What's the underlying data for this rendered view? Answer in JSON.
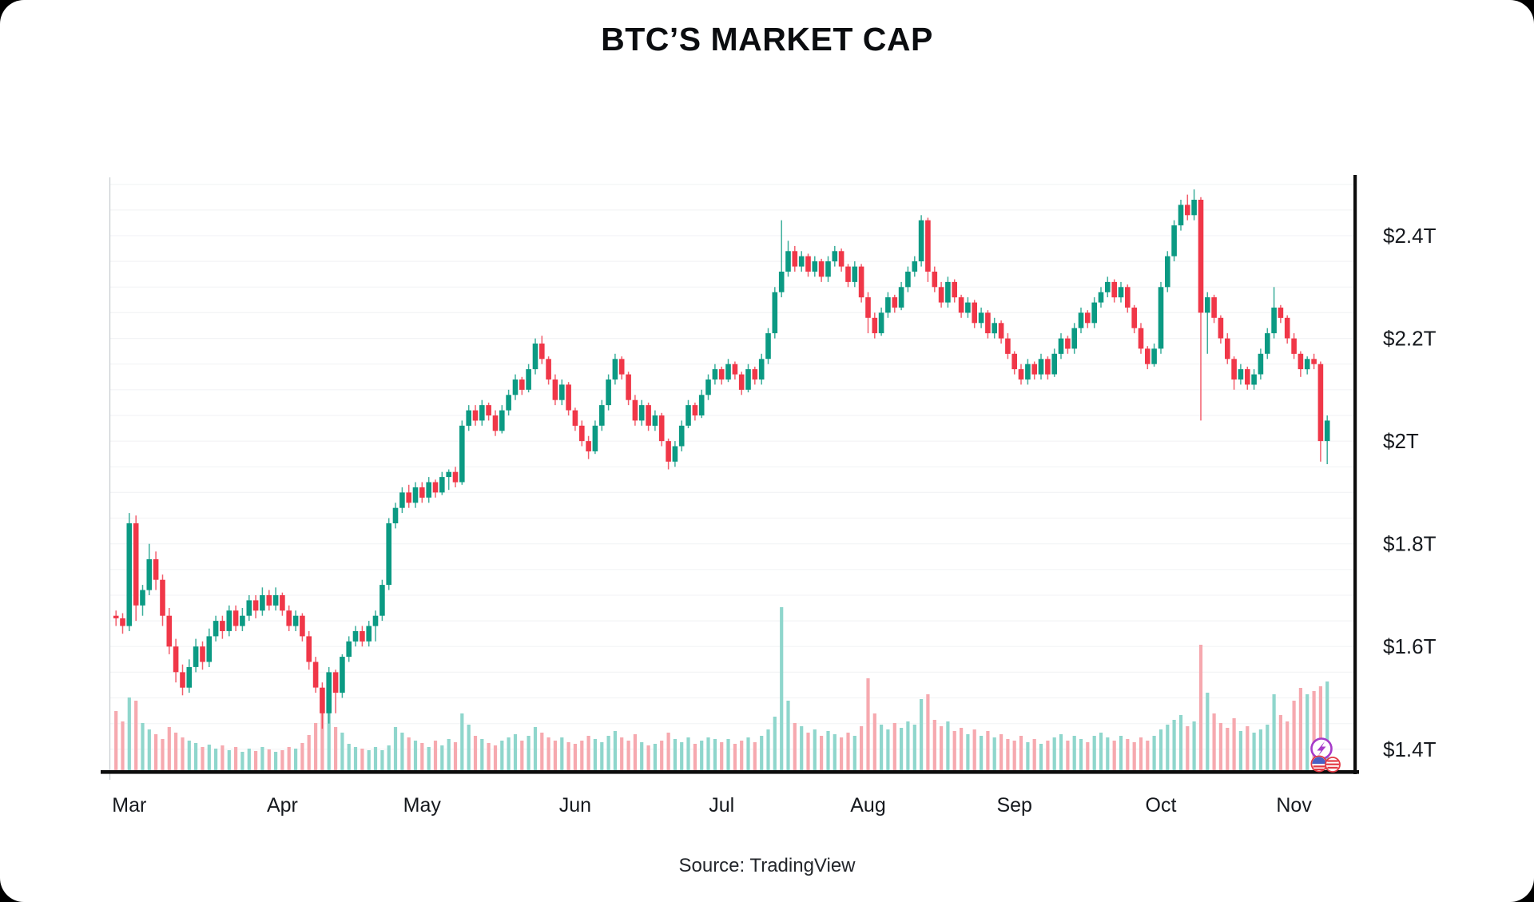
{
  "page": {
    "title": "BTC’S MARKET CAP",
    "source": "Source: TradingView",
    "colors": {
      "page_background": "#000000",
      "card_background": "#ffffff",
      "title_text": "#0b0d10",
      "label_text": "#16191e"
    }
  },
  "chart_data": {
    "type": "candlestick",
    "title": "BTC’S MARKET CAP",
    "xlabel": "",
    "ylabel": "",
    "unit": "USD trillions",
    "ylim": [
      1.36,
      2.52
    ],
    "grid": "faint-horizontal",
    "legend": "none",
    "x_axis": {
      "ticks": [
        {
          "label": "Mar",
          "index": 2
        },
        {
          "label": "Apr",
          "index": 25
        },
        {
          "label": "May",
          "index": 46
        },
        {
          "label": "Jun",
          "index": 69
        },
        {
          "label": "Jul",
          "index": 91
        },
        {
          "label": "Aug",
          "index": 113
        },
        {
          "label": "Sep",
          "index": 135
        },
        {
          "label": "Oct",
          "index": 157
        },
        {
          "label": "Nov",
          "index": 177
        }
      ]
    },
    "y_axis": {
      "ticks": [
        {
          "value": 2.4,
          "label": "$2.4T"
        },
        {
          "value": 2.2,
          "label": "$2.2T"
        },
        {
          "value": 2.0,
          "label": "$2T"
        },
        {
          "value": 1.8,
          "label": "$1.8T"
        },
        {
          "value": 1.6,
          "label": "$1.6T"
        },
        {
          "value": 1.4,
          "label": "$1.4T"
        }
      ]
    },
    "colors": {
      "up": "#0b9a83",
      "down": "#f03748",
      "volume_up": "#8fd6cc",
      "volume_down": "#f6a9af",
      "axis": "#0d0d0d",
      "grid": "#f3f4f6",
      "left_edge": "#c9cdd2",
      "label": "#16191e",
      "badge_purple": "#a63bc9",
      "badge_red": "#e23a44",
      "badge_blue": "#4a5fc4"
    },
    "candles": [
      [
        1.66,
        1.67,
        1.64,
        1.655
      ],
      [
        1.655,
        1.665,
        1.625,
        1.64
      ],
      [
        1.64,
        1.86,
        1.63,
        1.84
      ],
      [
        1.84,
        1.855,
        1.65,
        1.68
      ],
      [
        1.68,
        1.72,
        1.66,
        1.71
      ],
      [
        1.71,
        1.8,
        1.7,
        1.77
      ],
      [
        1.77,
        1.785,
        1.71,
        1.73
      ],
      [
        1.73,
        1.74,
        1.64,
        1.66
      ],
      [
        1.66,
        1.675,
        1.585,
        1.6
      ],
      [
        1.6,
        1.615,
        1.53,
        1.55
      ],
      [
        1.55,
        1.565,
        1.505,
        1.52
      ],
      [
        1.52,
        1.575,
        1.51,
        1.56
      ],
      [
        1.56,
        1.615,
        1.55,
        1.6
      ],
      [
        1.6,
        1.61,
        1.555,
        1.57
      ],
      [
        1.57,
        1.635,
        1.56,
        1.62
      ],
      [
        1.62,
        1.66,
        1.61,
        1.65
      ],
      [
        1.65,
        1.66,
        1.615,
        1.63
      ],
      [
        1.63,
        1.68,
        1.62,
        1.67
      ],
      [
        1.67,
        1.68,
        1.63,
        1.64
      ],
      [
        1.64,
        1.675,
        1.63,
        1.66
      ],
      [
        1.66,
        1.7,
        1.65,
        1.69
      ],
      [
        1.69,
        1.7,
        1.655,
        1.67
      ],
      [
        1.67,
        1.715,
        1.66,
        1.7
      ],
      [
        1.7,
        1.71,
        1.67,
        1.68
      ],
      [
        1.68,
        1.715,
        1.67,
        1.7
      ],
      [
        1.7,
        1.705,
        1.66,
        1.67
      ],
      [
        1.67,
        1.68,
        1.63,
        1.64
      ],
      [
        1.64,
        1.67,
        1.63,
        1.66
      ],
      [
        1.66,
        1.665,
        1.61,
        1.62
      ],
      [
        1.62,
        1.63,
        1.555,
        1.57
      ],
      [
        1.57,
        1.58,
        1.51,
        1.52
      ],
      [
        1.52,
        1.53,
        1.44,
        1.47
      ],
      [
        1.47,
        1.56,
        1.45,
        1.55
      ],
      [
        1.55,
        1.555,
        1.47,
        1.51
      ],
      [
        1.51,
        1.585,
        1.5,
        1.58
      ],
      [
        1.58,
        1.62,
        1.57,
        1.61
      ],
      [
        1.61,
        1.64,
        1.6,
        1.63
      ],
      [
        1.63,
        1.64,
        1.6,
        1.61
      ],
      [
        1.61,
        1.65,
        1.6,
        1.64
      ],
      [
        1.64,
        1.67,
        1.61,
        1.66
      ],
      [
        1.66,
        1.73,
        1.65,
        1.72
      ],
      [
        1.72,
        1.85,
        1.71,
        1.84
      ],
      [
        1.84,
        1.88,
        1.83,
        1.87
      ],
      [
        1.87,
        1.91,
        1.86,
        1.9
      ],
      [
        1.9,
        1.915,
        1.87,
        1.88
      ],
      [
        1.88,
        1.92,
        1.87,
        1.91
      ],
      [
        1.91,
        1.92,
        1.88,
        1.89
      ],
      [
        1.89,
        1.93,
        1.88,
        1.92
      ],
      [
        1.92,
        1.925,
        1.89,
        1.9
      ],
      [
        1.9,
        1.94,
        1.895,
        1.93
      ],
      [
        1.93,
        1.945,
        1.905,
        1.94
      ],
      [
        1.94,
        1.95,
        1.91,
        1.92
      ],
      [
        1.92,
        2.04,
        1.915,
        2.03
      ],
      [
        2.03,
        2.07,
        2.02,
        2.06
      ],
      [
        2.06,
        2.07,
        2.03,
        2.04
      ],
      [
        2.04,
        2.08,
        2.03,
        2.07
      ],
      [
        2.07,
        2.075,
        2.04,
        2.05
      ],
      [
        2.05,
        2.06,
        2.01,
        2.02
      ],
      [
        2.02,
        2.07,
        2.015,
        2.06
      ],
      [
        2.06,
        2.1,
        2.05,
        2.09
      ],
      [
        2.09,
        2.13,
        2.08,
        2.12
      ],
      [
        2.12,
        2.125,
        2.09,
        2.1
      ],
      [
        2.1,
        2.15,
        2.095,
        2.14
      ],
      [
        2.14,
        2.2,
        2.13,
        2.19
      ],
      [
        2.19,
        2.205,
        2.15,
        2.16
      ],
      [
        2.16,
        2.165,
        2.11,
        2.12
      ],
      [
        2.12,
        2.13,
        2.07,
        2.08
      ],
      [
        2.08,
        2.12,
        2.07,
        2.11
      ],
      [
        2.11,
        2.115,
        2.05,
        2.06
      ],
      [
        2.06,
        2.065,
        2.02,
        2.03
      ],
      [
        2.03,
        2.04,
        1.99,
        2.0
      ],
      [
        2.0,
        2.01,
        1.965,
        1.98
      ],
      [
        1.98,
        2.04,
        1.975,
        2.03
      ],
      [
        2.03,
        2.08,
        2.02,
        2.07
      ],
      [
        2.07,
        2.13,
        2.06,
        2.12
      ],
      [
        2.12,
        2.17,
        2.11,
        2.16
      ],
      [
        2.16,
        2.165,
        2.12,
        2.13
      ],
      [
        2.13,
        2.135,
        2.07,
        2.08
      ],
      [
        2.08,
        2.09,
        2.03,
        2.04
      ],
      [
        2.04,
        2.08,
        2.03,
        2.07
      ],
      [
        2.07,
        2.075,
        2.02,
        2.03
      ],
      [
        2.03,
        2.06,
        2.02,
        2.05
      ],
      [
        2.05,
        2.055,
        1.99,
        2.0
      ],
      [
        2.0,
        2.005,
        1.945,
        1.96
      ],
      [
        1.96,
        2.0,
        1.95,
        1.99
      ],
      [
        1.99,
        2.04,
        1.98,
        2.03
      ],
      [
        2.03,
        2.08,
        2.025,
        2.07
      ],
      [
        2.07,
        2.075,
        2.04,
        2.05
      ],
      [
        2.05,
        2.1,
        2.045,
        2.09
      ],
      [
        2.09,
        2.13,
        2.08,
        2.12
      ],
      [
        2.12,
        2.15,
        2.11,
        2.14
      ],
      [
        2.14,
        2.145,
        2.11,
        2.12
      ],
      [
        2.12,
        2.16,
        2.115,
        2.15
      ],
      [
        2.15,
        2.155,
        2.12,
        2.13
      ],
      [
        2.13,
        2.135,
        2.09,
        2.1
      ],
      [
        2.1,
        2.15,
        2.095,
        2.14
      ],
      [
        2.14,
        2.145,
        2.11,
        2.12
      ],
      [
        2.12,
        2.17,
        2.11,
        2.16
      ],
      [
        2.16,
        2.22,
        2.15,
        2.21
      ],
      [
        2.21,
        2.3,
        2.2,
        2.29
      ],
      [
        2.29,
        2.43,
        2.28,
        2.33
      ],
      [
        2.33,
        2.39,
        2.32,
        2.37
      ],
      [
        2.37,
        2.38,
        2.33,
        2.34
      ],
      [
        2.34,
        2.37,
        2.33,
        2.36
      ],
      [
        2.36,
        2.365,
        2.32,
        2.33
      ],
      [
        2.33,
        2.36,
        2.32,
        2.35
      ],
      [
        2.35,
        2.355,
        2.31,
        2.32
      ],
      [
        2.32,
        2.36,
        2.31,
        2.35
      ],
      [
        2.35,
        2.38,
        2.34,
        2.37
      ],
      [
        2.37,
        2.375,
        2.33,
        2.34
      ],
      [
        2.34,
        2.345,
        2.3,
        2.31
      ],
      [
        2.31,
        2.35,
        2.3,
        2.34
      ],
      [
        2.34,
        2.345,
        2.27,
        2.28
      ],
      [
        2.28,
        2.29,
        2.21,
        2.24
      ],
      [
        2.24,
        2.25,
        2.2,
        2.21
      ],
      [
        2.21,
        2.26,
        2.205,
        2.25
      ],
      [
        2.25,
        2.29,
        2.24,
        2.28
      ],
      [
        2.28,
        2.285,
        2.25,
        2.26
      ],
      [
        2.26,
        2.31,
        2.255,
        2.3
      ],
      [
        2.3,
        2.34,
        2.29,
        2.33
      ],
      [
        2.33,
        2.36,
        2.32,
        2.35
      ],
      [
        2.35,
        2.44,
        2.34,
        2.43
      ],
      [
        2.43,
        2.435,
        2.31,
        2.33
      ],
      [
        2.33,
        2.34,
        2.29,
        2.3
      ],
      [
        2.3,
        2.31,
        2.26,
        2.27
      ],
      [
        2.27,
        2.32,
        2.26,
        2.31
      ],
      [
        2.31,
        2.315,
        2.27,
        2.28
      ],
      [
        2.28,
        2.285,
        2.24,
        2.25
      ],
      [
        2.25,
        2.28,
        2.24,
        2.27
      ],
      [
        2.27,
        2.275,
        2.22,
        2.23
      ],
      [
        2.23,
        2.26,
        2.22,
        2.25
      ],
      [
        2.25,
        2.255,
        2.2,
        2.21
      ],
      [
        2.21,
        2.24,
        2.2,
        2.23
      ],
      [
        2.23,
        2.235,
        2.19,
        2.2
      ],
      [
        2.2,
        2.21,
        2.16,
        2.17
      ],
      [
        2.17,
        2.175,
        2.13,
        2.14
      ],
      [
        2.14,
        2.15,
        2.11,
        2.12
      ],
      [
        2.12,
        2.16,
        2.11,
        2.15
      ],
      [
        2.15,
        2.155,
        2.12,
        2.13
      ],
      [
        2.13,
        2.17,
        2.12,
        2.16
      ],
      [
        2.16,
        2.165,
        2.12,
        2.13
      ],
      [
        2.13,
        2.18,
        2.125,
        2.17
      ],
      [
        2.17,
        2.21,
        2.16,
        2.2
      ],
      [
        2.2,
        2.205,
        2.17,
        2.18
      ],
      [
        2.18,
        2.23,
        2.17,
        2.22
      ],
      [
        2.22,
        2.26,
        2.21,
        2.25
      ],
      [
        2.25,
        2.255,
        2.22,
        2.23
      ],
      [
        2.23,
        2.28,
        2.22,
        2.27
      ],
      [
        2.27,
        2.3,
        2.26,
        2.29
      ],
      [
        2.29,
        2.32,
        2.28,
        2.31
      ],
      [
        2.31,
        2.315,
        2.27,
        2.28
      ],
      [
        2.28,
        2.31,
        2.27,
        2.3
      ],
      [
        2.3,
        2.305,
        2.25,
        2.26
      ],
      [
        2.26,
        2.265,
        2.21,
        2.22
      ],
      [
        2.22,
        2.23,
        2.17,
        2.18
      ],
      [
        2.18,
        2.185,
        2.14,
        2.15
      ],
      [
        2.15,
        2.19,
        2.145,
        2.18
      ],
      [
        2.18,
        2.31,
        2.17,
        2.3
      ],
      [
        2.3,
        2.37,
        2.29,
        2.36
      ],
      [
        2.36,
        2.43,
        2.35,
        2.42
      ],
      [
        2.42,
        2.47,
        2.41,
        2.46
      ],
      [
        2.46,
        2.48,
        2.43,
        2.44
      ],
      [
        2.44,
        2.49,
        2.43,
        2.47
      ],
      [
        2.47,
        2.475,
        2.04,
        2.25
      ],
      [
        2.25,
        2.29,
        2.17,
        2.28
      ],
      [
        2.28,
        2.285,
        2.23,
        2.24
      ],
      [
        2.24,
        2.245,
        2.19,
        2.2
      ],
      [
        2.2,
        2.21,
        2.15,
        2.16
      ],
      [
        2.16,
        2.165,
        2.1,
        2.12
      ],
      [
        2.12,
        2.15,
        2.11,
        2.14
      ],
      [
        2.14,
        2.145,
        2.1,
        2.11
      ],
      [
        2.11,
        2.14,
        2.1,
        2.13
      ],
      [
        2.13,
        2.18,
        2.12,
        2.17
      ],
      [
        2.17,
        2.22,
        2.16,
        2.21
      ],
      [
        2.21,
        2.3,
        2.2,
        2.26
      ],
      [
        2.26,
        2.265,
        2.23,
        2.24
      ],
      [
        2.24,
        2.245,
        2.19,
        2.2
      ],
      [
        2.2,
        2.21,
        2.16,
        2.17
      ],
      [
        2.17,
        2.175,
        2.125,
        2.14
      ],
      [
        2.14,
        2.165,
        2.13,
        2.16
      ],
      [
        2.16,
        2.17,
        2.14,
        2.15
      ],
      [
        2.15,
        2.155,
        1.96,
        2.0
      ],
      [
        2.0,
        2.05,
        1.955,
        2.04
      ]
    ],
    "volumes": [
      75,
      62,
      92,
      88,
      60,
      52,
      46,
      40,
      55,
      48,
      42,
      38,
      35,
      30,
      33,
      28,
      32,
      26,
      30,
      24,
      28,
      25,
      30,
      27,
      24,
      26,
      30,
      28,
      35,
      45,
      60,
      95,
      80,
      55,
      48,
      34,
      30,
      28,
      26,
      30,
      26,
      32,
      55,
      48,
      42,
      38,
      35,
      30,
      38,
      32,
      40,
      36,
      72,
      58,
      44,
      40,
      35,
      32,
      38,
      42,
      46,
      38,
      44,
      55,
      48,
      42,
      38,
      42,
      36,
      34,
      38,
      44,
      40,
      36,
      44,
      50,
      42,
      38,
      46,
      36,
      32,
      34,
      38,
      48,
      40,
      36,
      42,
      34,
      38,
      42,
      40,
      36,
      40,
      34,
      38,
      42,
      36,
      44,
      52,
      68,
      205,
      88,
      60,
      56,
      48,
      52,
      44,
      50,
      46,
      42,
      48,
      44,
      56,
      116,
      72,
      58,
      52,
      60,
      54,
      62,
      58,
      90,
      96,
      64,
      56,
      62,
      50,
      54,
      46,
      52,
      44,
      50,
      42,
      46,
      40,
      38,
      44,
      36,
      40,
      34,
      38,
      42,
      46,
      38,
      44,
      40,
      36,
      44,
      48,
      42,
      38,
      44,
      40,
      36,
      42,
      38,
      44,
      52,
      58,
      64,
      70,
      56,
      62,
      158,
      98,
      72,
      60,
      54,
      66,
      50,
      56,
      48,
      52,
      58,
      96,
      70,
      62,
      88,
      104,
      96,
      100,
      106,
      112
    ],
    "badges": [
      {
        "name": "lightning-badge",
        "glyph": "lightning-bolt"
      },
      {
        "name": "flag-coin-blue",
        "glyph": "striped-coin-with-blue-top"
      },
      {
        "name": "flag-coin-red",
        "glyph": "striped-coin"
      }
    ]
  }
}
